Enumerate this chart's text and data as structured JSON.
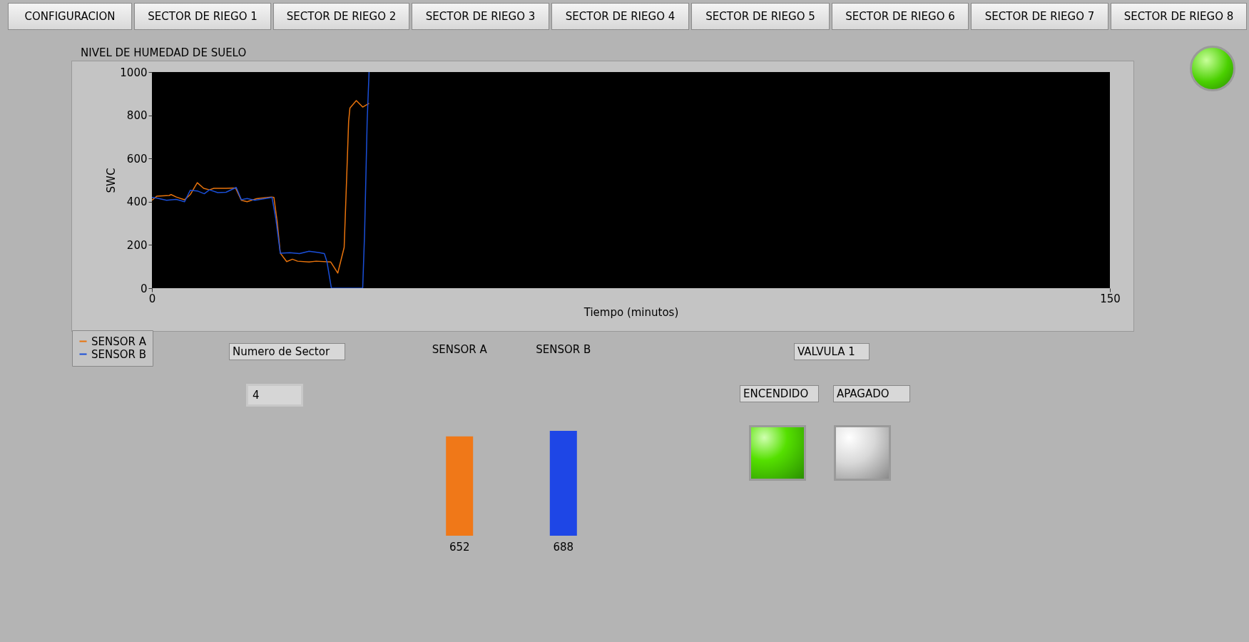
{
  "chart_data": [
    {
      "type": "other",
      "categories": [
        "CONFIGURACION",
        "SECTOR DE RIEGO 1",
        "SECTOR DE RIEGO 2",
        "SECTOR DE RIEGO 3",
        "SECTOR DE RIEGO 4",
        "SECTOR DE RIEGO 5",
        "SECTOR DE RIEGO 6",
        "SECTOR DE RIEGO 7",
        "SECTOR DE RIEGO 8"
      ]
    },
    {
      "type": "line",
      "title": "NIVEL DE HUMEDAD DE SUELO",
      "xlabel": "Tiempo (minutos)",
      "ylabel": "SWC",
      "xlim": [
        0,
        150
      ],
      "xticks": [
        0,
        150
      ],
      "ylim": [
        0,
        1000
      ],
      "yticks": [
        0,
        200,
        400,
        600,
        800,
        1000
      ],
      "grid": false,
      "legend": "bottom left",
      "marker": "none",
      "line_style": "solid",
      "series": [
        {
          "name": "SENSOR A",
          "color": "#e8730c",
          "x": [
            0,
            0.8,
            2.7,
            3.0,
            3.8,
            5.1,
            6.0,
            7.1,
            8.1,
            9.0,
            9.7,
            11.6,
            13.1,
            14.0,
            14.9,
            16.4,
            18.7,
            19.1,
            19.6,
            20.1,
            21.1,
            22.0,
            22.8,
            24.6,
            25.7,
            28.0,
            29.1,
            30.1,
            30.5,
            30.8,
            31.0,
            32.0,
            33.0,
            34.0
          ],
          "values": [
            407,
            426,
            429,
            433,
            422,
            409,
            433,
            488,
            462,
            455,
            462,
            462,
            464,
            407,
            400,
            414,
            422,
            420,
            310,
            162,
            123,
            134,
            125,
            121,
            125,
            121,
            70,
            189,
            519,
            772,
            833,
            868,
            838,
            855
          ]
        },
        {
          "name": "SENSOR B",
          "color": "#1a4fd8",
          "x": [
            0,
            0.8,
            2.3,
            3.8,
            5.1,
            6.0,
            7.1,
            8.2,
            9.0,
            10.3,
            11.6,
            13.2,
            14.0,
            14.9,
            16.1,
            18.8,
            19.4,
            20.1,
            21.6,
            23.1,
            24.6,
            26.1,
            27.0,
            27.4,
            28.1,
            33.0,
            33.3,
            33.7,
            34.0
          ],
          "values": [
            420,
            417,
            407,
            411,
            400,
            453,
            450,
            437,
            455,
            442,
            444,
            466,
            409,
            415,
            407,
            420,
            321,
            162,
            164,
            160,
            171,
            165,
            160,
            123,
            0,
            0,
            255,
            772,
            1000
          ]
        }
      ]
    },
    {
      "type": "bar",
      "categories": [
        "SENSOR A",
        "SENSOR B"
      ],
      "values": [
        652,
        688
      ],
      "data_labels": true,
      "colors": [
        "#f07818",
        "#1e46e6"
      ]
    },
    {
      "type": "other",
      "annotations": [
        "Numero de Sector",
        "4",
        "VALVULA 1",
        "ENCENDIDO",
        "APAGADO"
      ]
    }
  ]
}
